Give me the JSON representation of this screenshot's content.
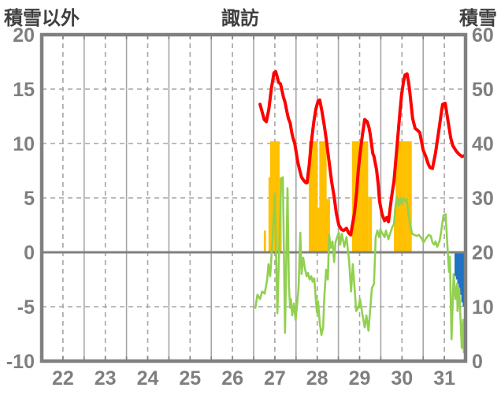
{
  "header": {
    "left_axis_title": "積雪以外",
    "chart_title": "諏訪",
    "right_axis_title": "積雪"
  },
  "colors": {
    "temperature_line": "#ff0000",
    "green_line": "#92d050",
    "sunshine_bars": "#ffc000",
    "snow_bars": "#2073c2",
    "grid": "#a6a6a6",
    "frame": "#808080",
    "labels": "#7f7f7f",
    "titles": "#3f3f3f"
  },
  "chart_data": {
    "type": "line+bar",
    "title": "諏訪",
    "x_axis": {
      "range": [
        22,
        32
      ],
      "ticks": [
        22,
        23,
        24,
        25,
        26,
        27,
        28,
        29,
        30,
        31
      ]
    },
    "y_left": {
      "title": "積雪以外",
      "range": [
        -10,
        20
      ],
      "ticks": [
        20,
        15,
        10,
        5,
        0,
        -5,
        -10
      ]
    },
    "y_right": {
      "title": "積雪",
      "range": [
        0,
        60
      ],
      "ticks": [
        60,
        50,
        40,
        30,
        20,
        10,
        0
      ]
    },
    "grid": {
      "v_solid": [
        23,
        24,
        25,
        26,
        27,
        28,
        29,
        30,
        31
      ],
      "v_dashed": [
        22.5,
        23.5,
        24.5,
        25.5,
        26.5,
        27.5,
        28.5,
        29.5,
        30.5,
        31.5
      ],
      "h_dashed": [
        15,
        10,
        5,
        -5
      ],
      "zero_line": 0
    },
    "series": [
      {
        "name": "sunshine-bars",
        "type": "bar",
        "axis": "left",
        "color": "#ffc000",
        "bar_width_days": 0.044,
        "baseline": 0,
        "points": [
          [
            27.24,
            2.0
          ],
          [
            27.35,
            6.9
          ],
          [
            27.39,
            10.2
          ],
          [
            27.43,
            10.2
          ],
          [
            27.48,
            10.2
          ],
          [
            27.52,
            10.2
          ],
          [
            27.56,
            10.2
          ],
          [
            27.61,
            6.9
          ],
          [
            28.3,
            10.2
          ],
          [
            28.34,
            10.2
          ],
          [
            28.38,
            10.2
          ],
          [
            28.42,
            10.2
          ],
          [
            28.46,
            10.2
          ],
          [
            28.51,
            4.1
          ],
          [
            28.55,
            10.2
          ],
          [
            28.59,
            10.2
          ],
          [
            28.63,
            10.2
          ],
          [
            28.67,
            10.2
          ],
          [
            28.71,
            4.9
          ],
          [
            28.75,
            4.9
          ],
          [
            29.32,
            10.2
          ],
          [
            29.36,
            10.2
          ],
          [
            29.4,
            10.2
          ],
          [
            29.44,
            10.2
          ],
          [
            29.48,
            10.2
          ],
          [
            29.53,
            10.2
          ],
          [
            29.57,
            10.2
          ],
          [
            29.61,
            10.2
          ],
          [
            29.65,
            10.2
          ],
          [
            29.7,
            5.1
          ],
          [
            29.74,
            5.1
          ],
          [
            30.31,
            4.0
          ],
          [
            30.35,
            10.2
          ],
          [
            30.39,
            10.2
          ],
          [
            30.43,
            10.2
          ],
          [
            30.47,
            10.2
          ],
          [
            30.51,
            10.2
          ],
          [
            30.55,
            10.2
          ],
          [
            30.6,
            10.2
          ],
          [
            30.64,
            10.2
          ],
          [
            30.68,
            10.2
          ]
        ]
      },
      {
        "name": "snow-bars",
        "type": "bar",
        "axis": "left",
        "color": "#2073c2",
        "bar_width_days": 0.034,
        "baseline": 0,
        "points": [
          [
            31.74,
            -2.2
          ],
          [
            31.772,
            -2.5
          ],
          [
            31.804,
            -2.9
          ],
          [
            31.836,
            -3.3
          ],
          [
            31.868,
            -3.9
          ],
          [
            31.9,
            -4.6
          ],
          [
            31.932,
            -5.0
          ],
          [
            31.962,
            -5.2
          ]
        ]
      },
      {
        "name": "green-line",
        "type": "line",
        "axis": "left",
        "color": "#92d050",
        "width": 2.6,
        "points": [
          [
            27.04,
            -5.1
          ],
          [
            27.09,
            -3.9
          ],
          [
            27.15,
            -4.3
          ],
          [
            27.2,
            -3.6
          ],
          [
            27.26,
            -3.8
          ],
          [
            27.32,
            -2.5
          ],
          [
            27.35,
            -1.1
          ],
          [
            27.39,
            -2.2
          ],
          [
            27.45,
            1.5
          ],
          [
            27.5,
            5.4
          ],
          [
            27.56,
            -5.6
          ],
          [
            27.61,
            1.3
          ],
          [
            27.65,
            6.7
          ],
          [
            27.69,
            6.9
          ],
          [
            27.74,
            -7.4
          ],
          [
            27.8,
            5.9
          ],
          [
            27.83,
            -3.0
          ],
          [
            27.86,
            -5.1
          ],
          [
            27.88,
            -4.3
          ],
          [
            27.91,
            -5.8
          ],
          [
            27.95,
            -4.7
          ],
          [
            27.99,
            -6.2
          ],
          [
            28.02,
            -5.0
          ],
          [
            28.06,
            -3.3
          ],
          [
            28.1,
            1.8
          ],
          [
            28.13,
            -2.0
          ],
          [
            28.17,
            -0.5
          ],
          [
            28.21,
            -1.5
          ],
          [
            28.25,
            -2.2
          ],
          [
            28.28,
            -1.9
          ],
          [
            28.32,
            -2.5
          ],
          [
            28.36,
            -2.2
          ],
          [
            28.39,
            -2.7
          ],
          [
            28.43,
            -2.4
          ],
          [
            28.49,
            -5.5
          ],
          [
            28.52,
            -4.5
          ],
          [
            28.56,
            -6.5
          ],
          [
            28.6,
            -7.6
          ],
          [
            28.64,
            -6.9
          ],
          [
            28.67,
            -4.0
          ],
          [
            28.71,
            -1.6
          ],
          [
            28.75,
            -2.5
          ],
          [
            28.78,
            1.6
          ],
          [
            28.82,
            0.4
          ],
          [
            28.86,
            1.0
          ],
          [
            28.9,
            -0.9
          ],
          [
            28.93,
            0.9
          ],
          [
            28.97,
            1.4
          ],
          [
            29.01,
            1.8
          ],
          [
            29.04,
            0.7
          ],
          [
            29.08,
            1.7
          ],
          [
            29.14,
            0.5
          ],
          [
            29.19,
            1.4
          ],
          [
            29.25,
            -0.7
          ],
          [
            29.3,
            -3.6
          ],
          [
            29.34,
            -1.1
          ],
          [
            29.42,
            -5.4
          ],
          [
            29.47,
            -5.1
          ],
          [
            29.51,
            -4.3
          ],
          [
            29.57,
            -5.8
          ],
          [
            29.62,
            -6.9
          ],
          [
            29.66,
            -5.8
          ],
          [
            29.71,
            -7.2
          ],
          [
            29.79,
            -3.3
          ],
          [
            29.84,
            -2.9
          ],
          [
            29.88,
            1.4
          ],
          [
            29.92,
            2.0
          ],
          [
            29.96,
            1.4
          ],
          [
            29.99,
            2.1
          ],
          [
            30.03,
            1.8
          ],
          [
            30.09,
            1.4
          ],
          [
            30.12,
            2.0
          ],
          [
            30.18,
            1.2
          ],
          [
            30.22,
            1.7
          ],
          [
            30.27,
            2.3
          ],
          [
            30.31,
            2.6
          ],
          [
            30.35,
            4.3
          ],
          [
            30.38,
            5.1
          ],
          [
            30.42,
            4.3
          ],
          [
            30.46,
            5.0
          ],
          [
            30.49,
            4.4
          ],
          [
            30.53,
            5.0
          ],
          [
            30.57,
            4.7
          ],
          [
            30.61,
            4.9
          ],
          [
            30.66,
            3.3
          ],
          [
            30.7,
            2.4
          ],
          [
            30.74,
            1.7
          ],
          [
            30.79,
            1.6
          ],
          [
            30.85,
            1.5
          ],
          [
            30.9,
            1.6
          ],
          [
            30.96,
            1.3
          ],
          [
            31.01,
            0.9
          ],
          [
            31.07,
            1.3
          ],
          [
            31.13,
            1.6
          ],
          [
            31.18,
            1.5
          ],
          [
            31.22,
            0.9
          ],
          [
            31.26,
            0.7
          ],
          [
            31.29,
            1.0
          ],
          [
            31.33,
            0.5
          ],
          [
            31.39,
            1.1
          ],
          [
            31.42,
            1.8
          ],
          [
            31.48,
            3.4
          ],
          [
            31.53,
            3.5
          ],
          [
            31.57,
            0.7
          ],
          [
            31.61,
            -1.8
          ],
          [
            31.63,
            -0.4
          ],
          [
            31.67,
            -8.0
          ],
          [
            31.72,
            -2.0
          ],
          [
            31.76,
            -4.3
          ],
          [
            31.8,
            -2.9
          ],
          [
            31.81,
            -5.4
          ],
          [
            31.85,
            -3.3
          ],
          [
            31.91,
            -8.8
          ],
          [
            31.94,
            -6.2
          ],
          [
            31.96,
            -9.2
          ],
          [
            31.98,
            -7.8
          ]
        ]
      },
      {
        "name": "temperature-line",
        "type": "line",
        "axis": "left",
        "color": "#ff0000",
        "width": 4,
        "points": [
          [
            27.15,
            13.6
          ],
          [
            27.2,
            12.9
          ],
          [
            27.25,
            12.2
          ],
          [
            27.3,
            12.0
          ],
          [
            27.36,
            13.2
          ],
          [
            27.42,
            15.1
          ],
          [
            27.48,
            16.5
          ],
          [
            27.52,
            16.6
          ],
          [
            27.55,
            16.2
          ],
          [
            27.59,
            15.6
          ],
          [
            27.63,
            15.5
          ],
          [
            27.65,
            15.2
          ],
          [
            27.7,
            14.3
          ],
          [
            27.74,
            13.8
          ],
          [
            27.78,
            13.0
          ],
          [
            27.82,
            12.3
          ],
          [
            27.86,
            11.9
          ],
          [
            27.9,
            11.0
          ],
          [
            27.93,
            10.5
          ],
          [
            27.97,
            10.0
          ],
          [
            28.04,
            8.3
          ],
          [
            28.09,
            7.5
          ],
          [
            28.13,
            6.9
          ],
          [
            28.18,
            6.6
          ],
          [
            28.23,
            6.4
          ],
          [
            28.26,
            6.4
          ],
          [
            28.31,
            8.0
          ],
          [
            28.36,
            10.1
          ],
          [
            28.42,
            12.0
          ],
          [
            28.47,
            13.2
          ],
          [
            28.52,
            13.9
          ],
          [
            28.56,
            14.0
          ],
          [
            28.61,
            13.0
          ],
          [
            28.67,
            11.6
          ],
          [
            28.72,
            10.2
          ],
          [
            28.78,
            8.3
          ],
          [
            28.84,
            6.5
          ],
          [
            28.9,
            5.1
          ],
          [
            28.95,
            3.6
          ],
          [
            29.01,
            2.5
          ],
          [
            29.07,
            2.1
          ],
          [
            29.12,
            2.0
          ],
          [
            29.19,
            2.2
          ],
          [
            29.24,
            1.8
          ],
          [
            29.29,
            1.6
          ],
          [
            29.38,
            3.6
          ],
          [
            29.43,
            5.5
          ],
          [
            29.47,
            7.6
          ],
          [
            29.52,
            9.4
          ],
          [
            29.57,
            10.9
          ],
          [
            29.62,
            12.2
          ],
          [
            29.68,
            12.0
          ],
          [
            29.72,
            11.5
          ],
          [
            29.75,
            10.9
          ],
          [
            29.81,
            9.1
          ],
          [
            29.84,
            8.8
          ],
          [
            29.9,
            7.6
          ],
          [
            29.94,
            6.2
          ],
          [
            29.97,
            4.7
          ],
          [
            30.03,
            3.5
          ],
          [
            30.09,
            2.9
          ],
          [
            30.14,
            3.2
          ],
          [
            30.18,
            2.8
          ],
          [
            30.22,
            4.0
          ],
          [
            30.27,
            5.5
          ],
          [
            30.31,
            6.5
          ],
          [
            30.4,
            10.5
          ],
          [
            30.45,
            12.8
          ],
          [
            30.49,
            14.5
          ],
          [
            30.54,
            15.8
          ],
          [
            30.57,
            16.3
          ],
          [
            30.62,
            16.4
          ],
          [
            30.66,
            15.5
          ],
          [
            30.68,
            14.9
          ],
          [
            30.75,
            12.3
          ],
          [
            30.81,
            11.4
          ],
          [
            30.87,
            11.2
          ],
          [
            30.92,
            11.0
          ],
          [
            31.0,
            9.4
          ],
          [
            31.07,
            8.7
          ],
          [
            31.12,
            8.1
          ],
          [
            31.16,
            7.8
          ],
          [
            31.22,
            7.7
          ],
          [
            31.29,
            9.1
          ],
          [
            31.37,
            11.2
          ],
          [
            31.42,
            12.6
          ],
          [
            31.46,
            13.6
          ],
          [
            31.52,
            13.7
          ],
          [
            31.59,
            12.0
          ],
          [
            31.65,
            10.5
          ],
          [
            31.7,
            9.8
          ],
          [
            31.78,
            9.3
          ],
          [
            31.85,
            9.0
          ],
          [
            31.92,
            8.8
          ],
          [
            31.98,
            8.9
          ]
        ]
      }
    ]
  }
}
